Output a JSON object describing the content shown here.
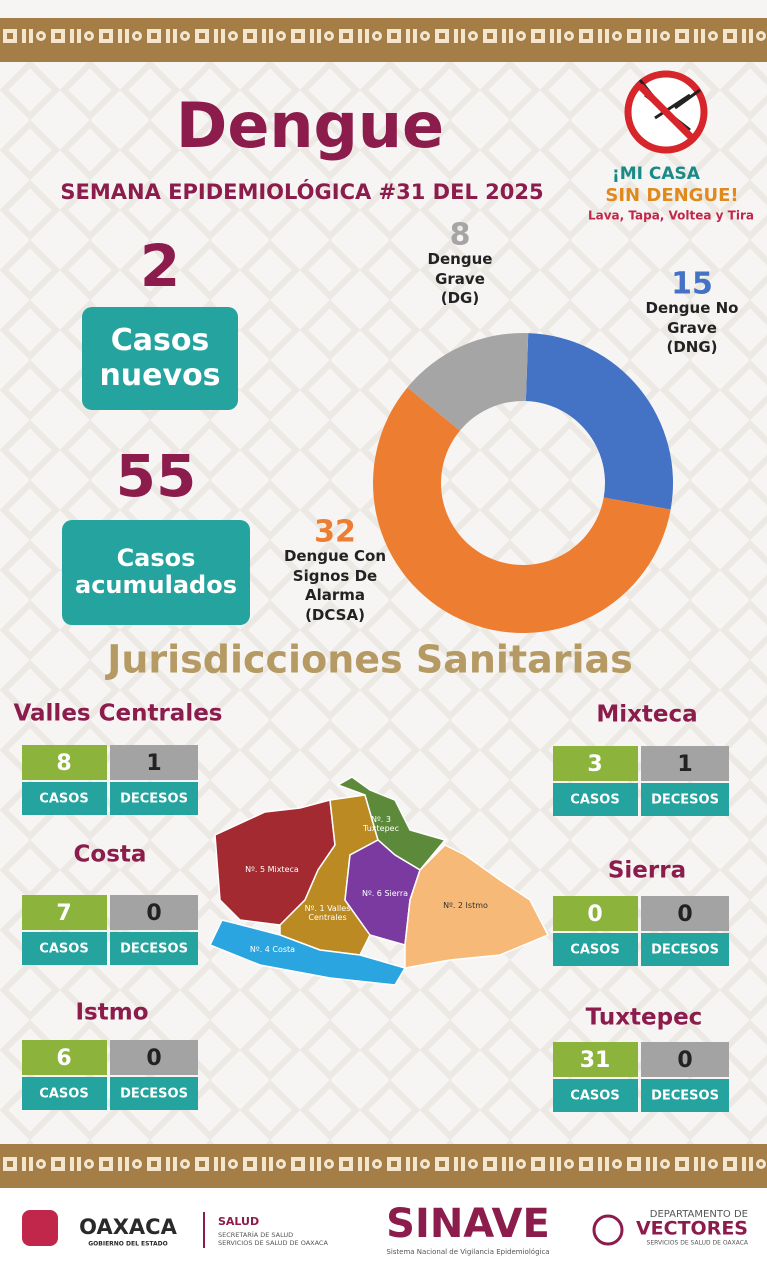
{
  "header": {
    "title": "Dengue",
    "subtitle": "SEMANA EPIDEMIOLÓGICA #31 DEL 2025",
    "campaign": [
      "¡MI CASA",
      "SIN DENGUE!",
      "Lava, Tapa, Voltea y Tira"
    ]
  },
  "summary": [
    {
      "value": 2,
      "label": "Casos nuevos"
    },
    {
      "value": 55,
      "label": "Casos acumulados"
    }
  ],
  "chart_data": {
    "type": "donut",
    "categories": [
      "Dengue No Grave (DNG)",
      "Dengue Con Signos De Alarma (DCSA)",
      "Dengue Grave (DG)"
    ],
    "values": [
      15,
      32,
      8
    ],
    "colors": [
      "#4472c4",
      "#ed7d31",
      "#a5a5a5"
    ]
  },
  "section_title": "Jurisdicciones Sanitarias",
  "columns": [
    "CASOS",
    "DECESOS"
  ],
  "regions": [
    {
      "name": "Valles Centrales",
      "casos": 8,
      "decesos": 1
    },
    {
      "name": "Costa",
      "casos": 7,
      "decesos": 0
    },
    {
      "name": "Istmo",
      "casos": 6,
      "decesos": 0
    },
    {
      "name": "Mixteca",
      "casos": 3,
      "decesos": 1
    },
    {
      "name": "Sierra",
      "casos": 0,
      "decesos": 0
    },
    {
      "name": "Tuxtepec",
      "casos": 31,
      "decesos": 0
    }
  ],
  "map_labels": [
    "Nº. 5 Mixteca",
    "Nº. 3 Tuxtepec",
    "Nº. 6 Sierra",
    "Nº. 1 Valles Centrales",
    "Nº. 2 Istmo",
    "Nº. 4 Costa"
  ],
  "footer": {
    "oaxaca": "OAXACA",
    "oaxaca_sub": "GOBIERNO DEL ESTADO",
    "salud": "SALUD",
    "salud_sub": [
      "SECRETARÍA DE SALUD",
      "SERVICIOS DE SALUD DE OAXACA"
    ],
    "sinave": "SINAVE",
    "sinave_sub": "Sistema Nacional de Vigilancia Epidemiológica",
    "vectores": [
      "DEPARTAMENTO DE",
      "VECTORES",
      "SERVICIOS DE SALUD DE OAXACA"
    ]
  }
}
